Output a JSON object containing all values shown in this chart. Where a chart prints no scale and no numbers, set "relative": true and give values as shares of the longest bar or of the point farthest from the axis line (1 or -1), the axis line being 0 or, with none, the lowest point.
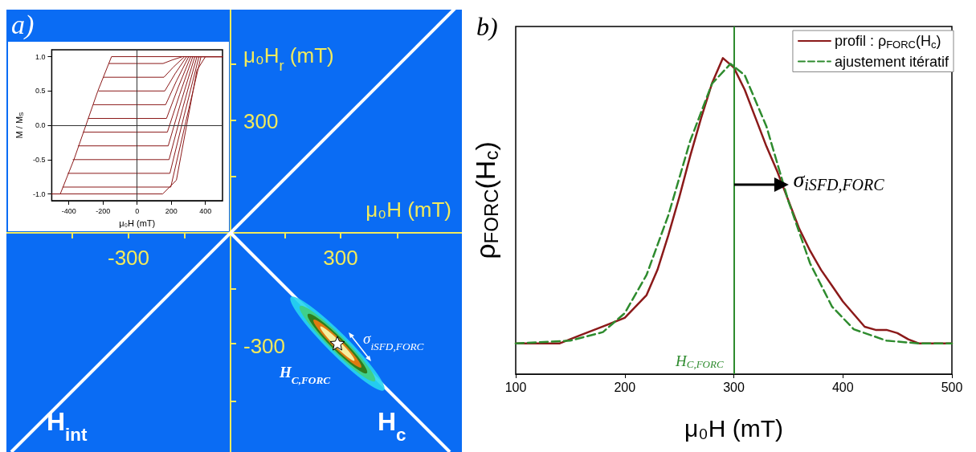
{
  "chart_data": [
    {
      "type": "other",
      "title": "a)",
      "annotations": [
        "μ₀H$_{r}$ (mT)",
        "300",
        "μ₀H (mT)",
        "-300",
        "300",
        "-300",
        "σ$_{iSFD,FORC}$",
        "H$_{C,FORC}$",
        "H$_{int}$",
        "H$_{c}$"
      ]
    },
    {
      "type": "line",
      "xlabel": "μ₀H (mT)",
      "ylabel": "M / M$_{S}$",
      "xlim": [
        -500,
        500
      ],
      "xticks": [
        -400,
        -200,
        0,
        200,
        400
      ],
      "ylim": [
        -1.1,
        1.1
      ],
      "yticks": [
        {
          "value": -1,
          "label": "-1.0"
        },
        {
          "value": -0.5,
          "label": "-0.5"
        },
        {
          "value": 0,
          "label": "0.0"
        },
        {
          "value": 0.5,
          "label": "0.5"
        },
        {
          "value": 1,
          "label": "1.0"
        }
      ],
      "grid": false,
      "legend": false,
      "marker": "none",
      "line_style": "solid",
      "ref_lines": [
        {
          "axis": "x",
          "value": 0,
          "color": "#333333"
        },
        {
          "axis": "y",
          "value": 0,
          "color": "#333333"
        }
      ],
      "series": [
        {
          "color": "#8b1a1a",
          "x": [
            500,
            -150,
            -230,
            -300,
            -370,
            -450,
            -500
          ],
          "values": [
            1,
            1,
            0.5,
            0,
            -0.5,
            -1,
            -1
          ]
        },
        {
          "color": "#8b1a1a",
          "x": [
            -500,
            150,
            230,
            290,
            350,
            400,
            500
          ],
          "values": [
            -1,
            -1,
            -0.8,
            0,
            0.8,
            1,
            1
          ]
        },
        {
          "color": "#8b1a1a",
          "x": [
            -165,
            152,
            204,
            266,
            500
          ],
          "values": [
            0.9,
            0.9,
            0.95,
            1,
            1
          ]
        },
        {
          "color": "#8b1a1a",
          "x": [
            -195,
            157,
            213,
            278,
            500
          ],
          "values": [
            0.7,
            0.7,
            0.85,
            1,
            1
          ]
        },
        {
          "color": "#8b1a1a",
          "x": [
            -225,
            162,
            222,
            290,
            500
          ],
          "values": [
            0.5,
            0.5,
            0.75,
            1,
            1
          ]
        },
        {
          "color": "#8b1a1a",
          "x": [
            -255,
            167,
            231,
            302,
            500
          ],
          "values": [
            0.3,
            0.3,
            0.65,
            1,
            1
          ]
        },
        {
          "color": "#8b1a1a",
          "x": [
            -285,
            172,
            240,
            314,
            500
          ],
          "values": [
            0.1,
            0.1,
            0.55,
            1,
            1
          ]
        },
        {
          "color": "#8b1a1a",
          "x": [
            -315,
            177,
            249,
            326,
            500
          ],
          "values": [
            -0.1,
            -0.1,
            0.45,
            1,
            1
          ]
        },
        {
          "color": "#8b1a1a",
          "x": [
            -345,
            182,
            258,
            338,
            500
          ],
          "values": [
            -0.3,
            -0.3,
            0.35,
            1,
            1
          ]
        },
        {
          "color": "#8b1a1a",
          "x": [
            -375,
            187,
            267,
            350,
            500
          ],
          "values": [
            -0.5,
            -0.5,
            0.25,
            1,
            1
          ]
        },
        {
          "color": "#8b1a1a",
          "x": [
            -405,
            192,
            276,
            362,
            500
          ],
          "values": [
            -0.7,
            -0.7,
            0.15,
            1,
            1
          ]
        },
        {
          "color": "#8b1a1a",
          "x": [
            -435,
            197,
            285,
            374,
            500
          ],
          "values": [
            -0.9,
            -0.9,
            0.05,
            1,
            1
          ]
        }
      ]
    },
    {
      "type": "line",
      "title": "b)",
      "xlabel": "μ₀H (mT)",
      "ylabel": "ρ$_{FORC}$(H$_{c}$)",
      "relative": true,
      "xlim": [
        100,
        500
      ],
      "xticks": [
        100,
        200,
        300,
        400,
        500
      ],
      "grid": false,
      "legend": "top right",
      "marker": "none",
      "ref_lines": [
        {
          "axis": "x",
          "value": 300,
          "label": "H$_{C,FORC}$",
          "color": "#2e8b2e"
        }
      ],
      "annotations": [
        {
          "text": "σ$_{iSFD,FORC}$",
          "x": 350,
          "y": 0.6
        }
      ],
      "series": [
        {
          "name": "profil : ρ$_{FORC}$(H$_{c}$)",
          "color": "#8b1a1a",
          "line_style": "solid",
          "x": [
            100,
            140,
            160,
            180,
            200,
            220,
            230,
            240,
            250,
            260,
            270,
            280,
            290,
            300,
            310,
            320,
            330,
            340,
            350,
            360,
            370,
            380,
            390,
            400,
            410,
            420,
            430,
            440,
            450,
            460,
            470,
            500
          ],
          "values": [
            0.097,
            0.097,
            0.124,
            0.151,
            0.178,
            0.25,
            0.33,
            0.44,
            0.56,
            0.69,
            0.81,
            0.92,
            1.0,
            0.97,
            0.9,
            0.81,
            0.72,
            0.64,
            0.55,
            0.46,
            0.39,
            0.33,
            0.28,
            0.23,
            0.19,
            0.15,
            0.14,
            0.14,
            0.13,
            0.11,
            0.097,
            0.097
          ]
        },
        {
          "name": "ajustement itératif",
          "color": "#2e8b2e",
          "line_style": "dashed",
          "x": [
            100,
            150,
            180,
            200,
            220,
            240,
            260,
            280,
            297,
            310,
            330,
            350,
            370,
            390,
            410,
            440,
            470,
            500
          ],
          "values": [
            0.097,
            0.106,
            0.133,
            0.193,
            0.314,
            0.503,
            0.738,
            0.919,
            0.982,
            0.946,
            0.783,
            0.548,
            0.35,
            0.214,
            0.142,
            0.106,
            0.097,
            0.097
          ]
        }
      ]
    }
  ]
}
